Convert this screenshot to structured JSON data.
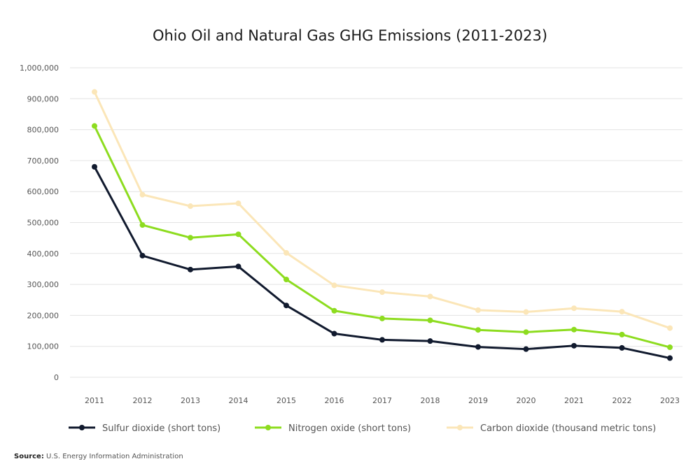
{
  "chart_data": {
    "type": "line",
    "title": "Ohio Oil and Natural Gas GHG Emissions (2011-2023)",
    "x": [
      "2011",
      "2012",
      "2013",
      "2014",
      "2015",
      "2016",
      "2017",
      "2018",
      "2019",
      "2020",
      "2021",
      "2022",
      "2023"
    ],
    "ylim": [
      0,
      1000000
    ],
    "yticks": [
      "0",
      "100,000",
      "200,000",
      "300,000",
      "400,000",
      "500,000",
      "600,000",
      "700,000",
      "800,000",
      "900,000",
      "1,000,000"
    ],
    "grid": true,
    "legend_position": "bottom",
    "series": [
      {
        "name": "Sulfur dioxide (short tons)",
        "color": "#111a2e",
        "values": [
          680000,
          393000,
          348000,
          358000,
          232000,
          141000,
          121000,
          117000,
          98000,
          91000,
          102000,
          95000,
          62000
        ]
      },
      {
        "name": "Nitrogen oxide (short tons)",
        "color": "#8ddc1f",
        "values": [
          812000,
          492000,
          451000,
          462000,
          316000,
          215000,
          190000,
          184000,
          153000,
          146000,
          154000,
          138000,
          97000
        ]
      },
      {
        "name": "Carbon dioxide (thousand metric tons)",
        "color": "#fbe6b8",
        "values": [
          922000,
          590000,
          553000,
          562000,
          402000,
          297000,
          275000,
          261000,
          217000,
          211000,
          223000,
          212000,
          159000
        ]
      }
    ]
  },
  "source": {
    "label": "Source:",
    "text": "U.S. Energy Information Administration"
  }
}
